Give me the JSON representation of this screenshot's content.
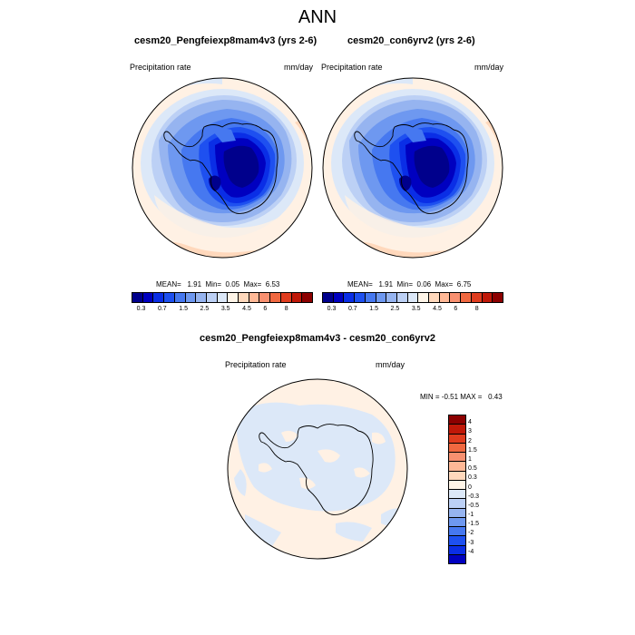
{
  "title": "ANN",
  "panels": [
    {
      "case_title": "cesm20_Pengfeiexp8mam4v3 (yrs 2-6)",
      "variable": "Precipitation rate",
      "units": "mm/day",
      "stats": {
        "mean": "1.91",
        "min": "0.05",
        "max": "6.53"
      }
    },
    {
      "case_title": "cesm20_con6yrv2 (yrs 2-6)",
      "variable": "Precipitation rate",
      "units": "mm/day",
      "stats": {
        "mean": "1.91",
        "min": "0.06",
        "max": "6.75"
      }
    }
  ],
  "stat_labels": {
    "mean": "MEAN=",
    "min": "Min=",
    "max": "Max="
  },
  "colorbar": {
    "colors": [
      "#00008c",
      "#0000c0",
      "#0a2ee6",
      "#1e50f0",
      "#4678f0",
      "#6e98f0",
      "#96b4f0",
      "#bcd0f5",
      "#dce8f8",
      "#fff5e8",
      "#ffd8bc",
      "#ffb896",
      "#f89070",
      "#f06840",
      "#e03c1e",
      "#c01808",
      "#8c0000"
    ],
    "ticks": [
      "0.3",
      "0.7",
      "1.5",
      "2.5",
      "3.5",
      "4.5",
      "6",
      "8"
    ]
  },
  "diff_panel": {
    "title": "cesm20_Pengfeiexp8mam4v3 - cesm20_con6yrv2",
    "variable": "Precipitation rate",
    "units": "mm/day",
    "min_max": "MIN = -0.51 MAX =   0.43",
    "colorbar": {
      "colors": [
        "#8c0000",
        "#c01808",
        "#e03c1e",
        "#f06840",
        "#f89070",
        "#ffb896",
        "#ffd8bc",
        "#fff5e8",
        "#dce8f8",
        "#bcd0f5",
        "#96b4f0",
        "#6e98f0",
        "#4678f0",
        "#1e50f0",
        "#0a2ee6",
        "#0000c0"
      ],
      "ticks": [
        "4",
        "3",
        "2",
        "1.5",
        "1",
        "0.5",
        "0.3",
        "0",
        "-0.3",
        "-0.5",
        "-1",
        "-1.5",
        "-2",
        "-3",
        "-4"
      ]
    }
  }
}
